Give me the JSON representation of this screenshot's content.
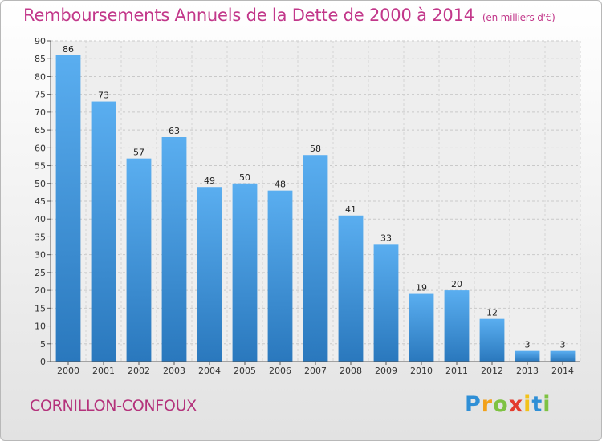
{
  "chart_data": {
    "type": "bar",
    "title": "Remboursements Annuels de la Dette de 2000 à 2014",
    "unit": "(en milliers d'€)",
    "categories": [
      "2000",
      "2001",
      "2002",
      "2003",
      "2004",
      "2005",
      "2006",
      "2007",
      "2008",
      "2009",
      "2010",
      "2011",
      "2012",
      "2013",
      "2014"
    ],
    "values": [
      86,
      73,
      57,
      63,
      49,
      50,
      48,
      58,
      41,
      33,
      19,
      20,
      12,
      3,
      3
    ],
    "ylim": [
      0,
      90
    ],
    "yticks": [
      0,
      5,
      10,
      15,
      20,
      25,
      30,
      35,
      40,
      45,
      50,
      55,
      60,
      65,
      70,
      75,
      80,
      85,
      90
    ],
    "grid": true,
    "bar_color": "#3d91d6"
  },
  "footer": {
    "commune": "CORNILLON-CONFOUX",
    "logo": {
      "p": "P",
      "r": "r",
      "o": "o",
      "x": "x",
      "i1": "i",
      "t": "t",
      "i2": "i"
    }
  }
}
